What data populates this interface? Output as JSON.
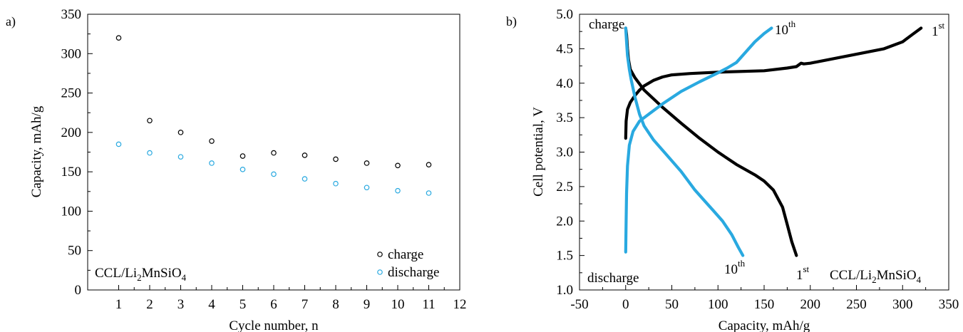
{
  "colors": {
    "charge": "#000000",
    "discharge": "#29a9e0",
    "axis": "#000000"
  },
  "panels": {
    "a": {
      "label": "a)",
      "annotation": {
        "base": "CCL/Li",
        "sub1": "2",
        "mid": "MnSiO",
        "sub2": "4"
      },
      "legend": {
        "charge": "charge",
        "discharge": "discharge",
        "position": "bottom-right"
      }
    },
    "b": {
      "label": "b)",
      "labels": {
        "charge": "charge",
        "discharge": "discharge",
        "first_top": {
          "base": "1",
          "sup": "st"
        },
        "tenth_top": {
          "base": "10",
          "sup": "th"
        },
        "first_bottom": {
          "base": "1",
          "sup": "st"
        },
        "tenth_bottom": {
          "base": "10",
          "sup": "th"
        }
      },
      "annotation": {
        "base": "CCL/Li",
        "sub1": "2",
        "mid": "MnSiO",
        "sub2": "4"
      }
    }
  },
  "chart_data": [
    {
      "type": "scatter",
      "xlabel": "Cycle number, n",
      "ylabel": "Capacity, mAh/g",
      "xlim": [
        0,
        12
      ],
      "ylim": [
        0,
        350
      ],
      "xticks": [
        1,
        2,
        3,
        4,
        5,
        6,
        7,
        8,
        9,
        10,
        11,
        12
      ],
      "yticks": [
        0,
        50,
        100,
        150,
        200,
        250,
        300,
        350
      ],
      "grid": false,
      "series": [
        {
          "name": "charge",
          "x": [
            1,
            2,
            3,
            4,
            5,
            6,
            7,
            8,
            9,
            10,
            11
          ],
          "y": [
            320,
            215,
            200,
            189,
            170,
            174,
            171,
            166,
            161,
            158,
            159
          ]
        },
        {
          "name": "discharge",
          "x": [
            1,
            2,
            3,
            4,
            5,
            6,
            7,
            8,
            9,
            10,
            11
          ],
          "y": [
            185,
            174,
            169,
            161,
            153,
            147,
            141,
            135,
            130,
            126,
            123
          ]
        }
      ]
    },
    {
      "type": "line",
      "xlabel": "Capacity, mAh/g",
      "ylabel": "Cell potential, V",
      "xlim": [
        -50,
        350
      ],
      "ylim": [
        1.0,
        5.0
      ],
      "xticks": [
        -50,
        0,
        50,
        100,
        150,
        200,
        250,
        300,
        350
      ],
      "yticks": [
        1.0,
        1.5,
        2.0,
        2.5,
        3.0,
        3.5,
        4.0,
        4.5,
        5.0
      ],
      "grid": false,
      "series": [
        {
          "name": "1st charge",
          "color": "charge",
          "points": [
            [
              0,
              3.2
            ],
            [
              0.5,
              3.45
            ],
            [
              2,
              3.62
            ],
            [
              5,
              3.72
            ],
            [
              10,
              3.82
            ],
            [
              15,
              3.9
            ],
            [
              20,
              3.96
            ],
            [
              30,
              4.04
            ],
            [
              40,
              4.09
            ],
            [
              50,
              4.12
            ],
            [
              70,
              4.14
            ],
            [
              100,
              4.16
            ],
            [
              150,
              4.18
            ],
            [
              175,
              4.22
            ],
            [
              185,
              4.24
            ],
            [
              190,
              4.29
            ],
            [
              193,
              4.28
            ],
            [
              200,
              4.29
            ],
            [
              250,
              4.42
            ],
            [
              280,
              4.5
            ],
            [
              300,
              4.6
            ],
            [
              310,
              4.7
            ],
            [
              320,
              4.8
            ]
          ]
        },
        {
          "name": "1st discharge",
          "color": "charge",
          "points": [
            [
              0,
              4.8
            ],
            [
              1,
              4.7
            ],
            [
              2,
              4.5
            ],
            [
              3,
              4.35
            ],
            [
              5,
              4.2
            ],
            [
              10,
              4.08
            ],
            [
              20,
              3.9
            ],
            [
              40,
              3.65
            ],
            [
              60,
              3.42
            ],
            [
              80,
              3.2
            ],
            [
              100,
              3.0
            ],
            [
              120,
              2.82
            ],
            [
              140,
              2.67
            ],
            [
              150,
              2.58
            ],
            [
              160,
              2.45
            ],
            [
              170,
              2.2
            ],
            [
              175,
              1.95
            ],
            [
              180,
              1.7
            ],
            [
              185,
              1.5
            ]
          ]
        },
        {
          "name": "10th charge",
          "color": "discharge",
          "points": [
            [
              0,
              1.55
            ],
            [
              0.5,
              2.0
            ],
            [
              1,
              2.4
            ],
            [
              2,
              2.8
            ],
            [
              4,
              3.1
            ],
            [
              8,
              3.3
            ],
            [
              15,
              3.45
            ],
            [
              25,
              3.55
            ],
            [
              40,
              3.7
            ],
            [
              60,
              3.88
            ],
            [
              80,
              4.02
            ],
            [
              100,
              4.15
            ],
            [
              110,
              4.22
            ],
            [
              120,
              4.3
            ],
            [
              130,
              4.45
            ],
            [
              140,
              4.6
            ],
            [
              150,
              4.72
            ],
            [
              158,
              4.8
            ]
          ]
        },
        {
          "name": "10th discharge",
          "color": "discharge",
          "points": [
            [
              0,
              4.8
            ],
            [
              1,
              4.6
            ],
            [
              2,
              4.4
            ],
            [
              4,
              4.2
            ],
            [
              6,
              4.05
            ],
            [
              10,
              3.8
            ],
            [
              15,
              3.55
            ],
            [
              20,
              3.38
            ],
            [
              30,
              3.18
            ],
            [
              45,
              2.95
            ],
            [
              60,
              2.72
            ],
            [
              75,
              2.45
            ],
            [
              85,
              2.3
            ],
            [
              95,
              2.15
            ],
            [
              105,
              2.0
            ],
            [
              115,
              1.8
            ],
            [
              122,
              1.62
            ],
            [
              127,
              1.5
            ]
          ]
        }
      ]
    }
  ]
}
